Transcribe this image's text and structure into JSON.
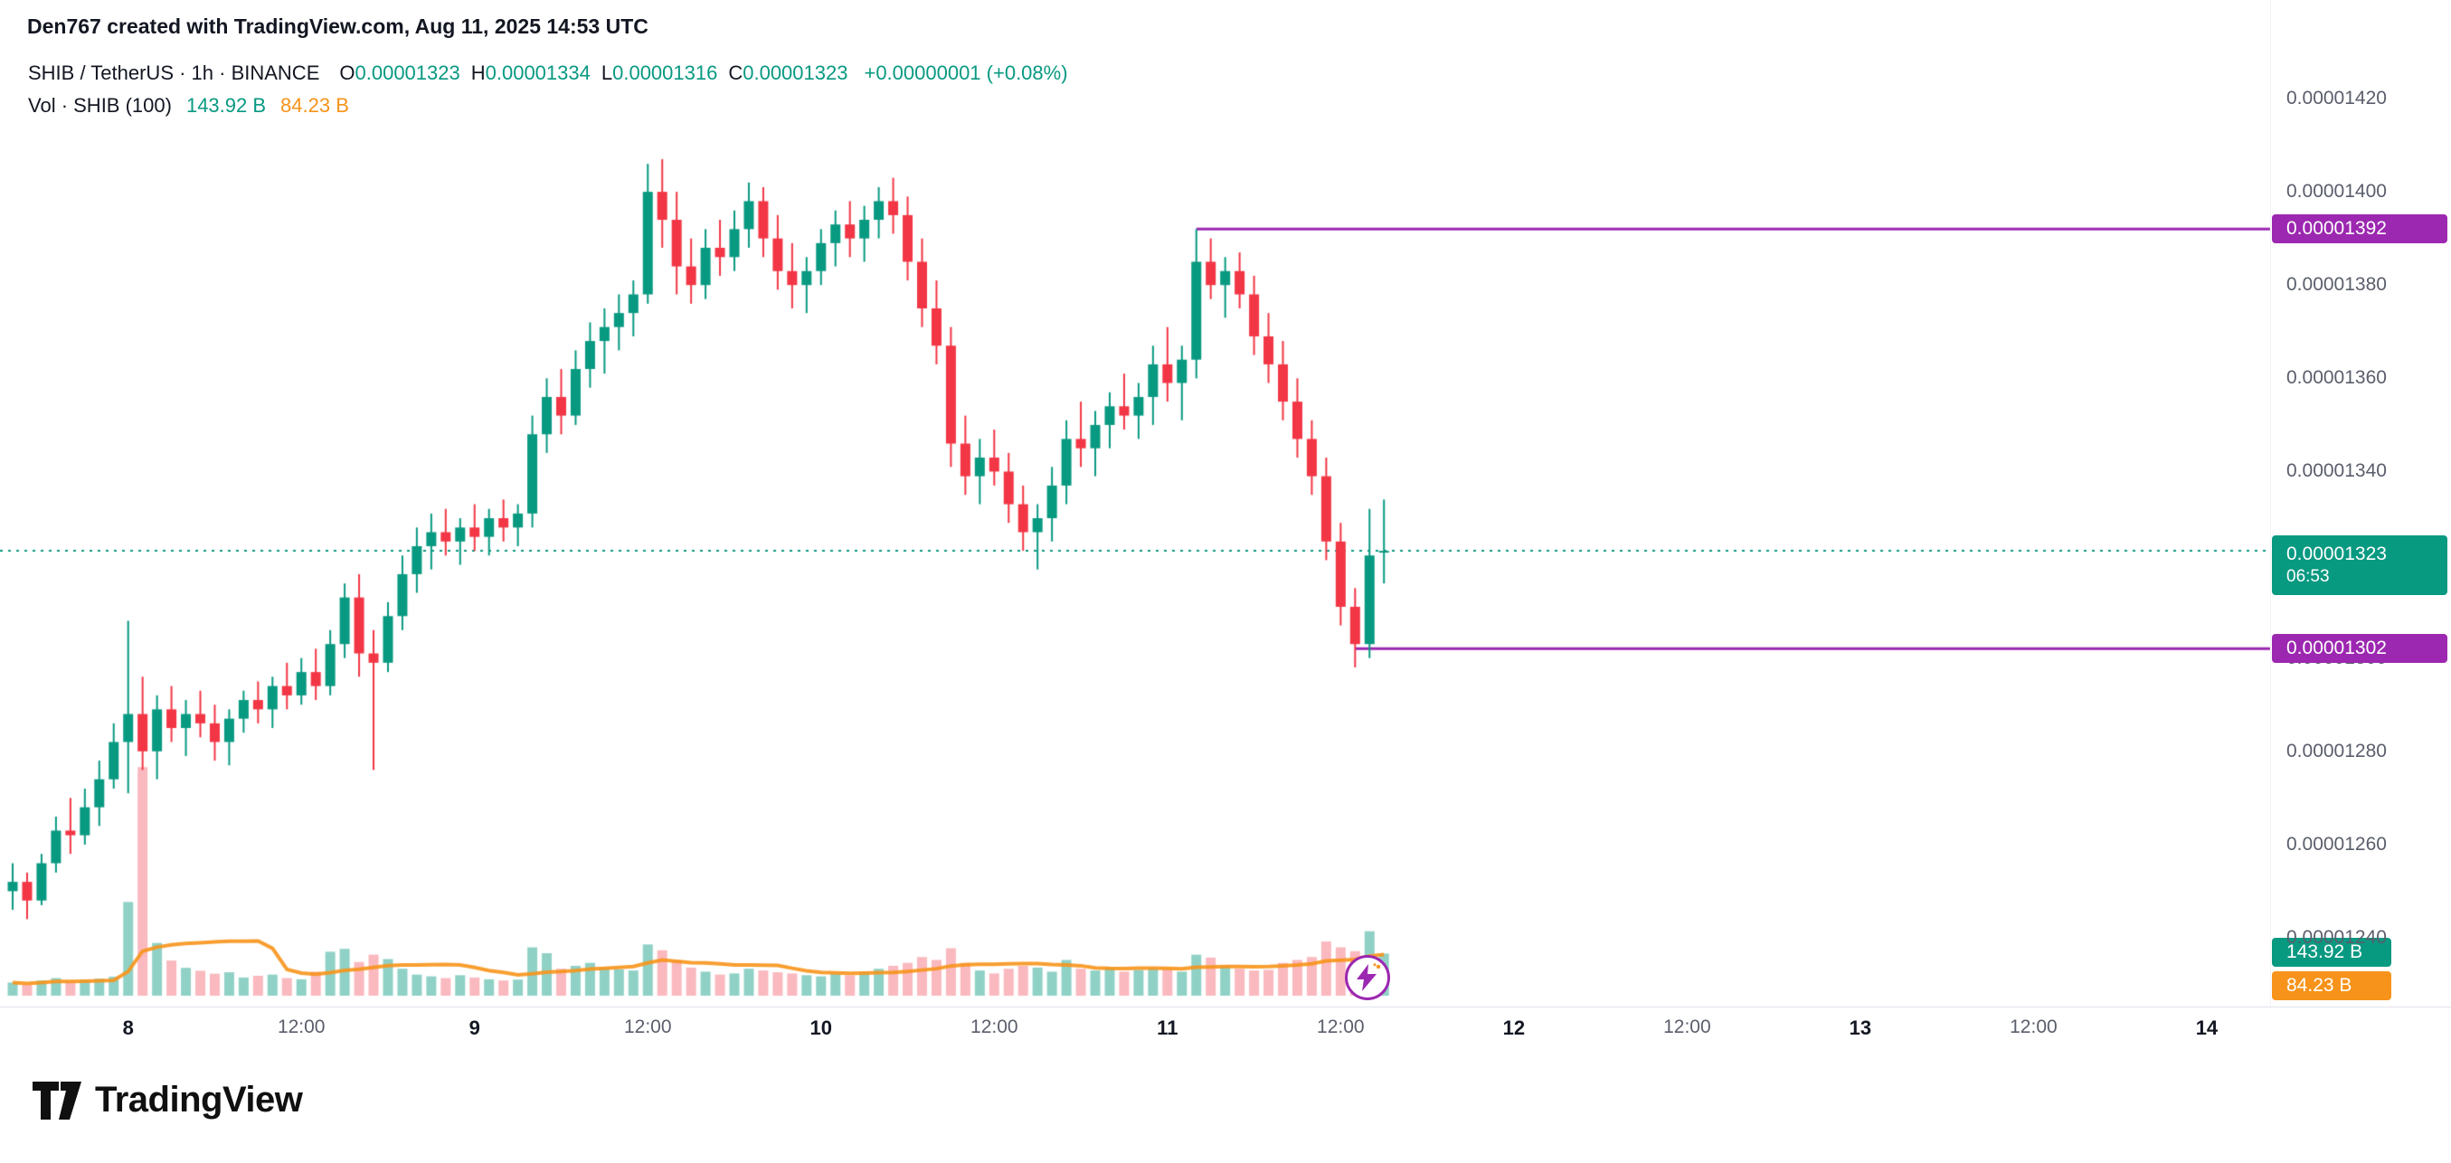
{
  "header": {
    "credit": "Den767 created with TradingView.com, Aug 11, 2025 14:53 UTC"
  },
  "legend": {
    "symbol_title": "SHIB / TetherUS · 1h · BINANCE",
    "o_label": "O",
    "o": "0.00001323",
    "h_label": "H",
    "h": "0.00001334",
    "l_label": "L",
    "l": "0.00001316",
    "c_label": "C",
    "c": "0.00001323",
    "change": "+0.00000001 (+0.08%)",
    "vol_label": "Vol · SHIB (100)",
    "vol_value": "143.92 B",
    "vol_ma": "84.23 B"
  },
  "colors": {
    "up": "#089981",
    "down": "#F23645",
    "vol_up": "rgba(8,153,129,0.45)",
    "vol_down": "rgba(242,54,69,0.35)",
    "ma": "#F7931A",
    "level": "#9C27B0",
    "text_dark": "#131722",
    "text_gray": "#5A5E6B"
  },
  "branding": {
    "logo_text": "TradingView"
  },
  "chart_data": {
    "type": "candlestick",
    "title": "SHIB / TetherUS · 1h · BINANCE",
    "interval": "1h",
    "price_unit": 1e-08,
    "ylim": [
      1240,
      1420
    ],
    "hours_origin": "Aug 8 00:00 UTC",
    "start_hour_index": -8,
    "candles": [
      [
        1250,
        1256,
        1246,
        1252
      ],
      [
        1252,
        1254,
        1244,
        1248
      ],
      [
        1248,
        1258,
        1247,
        1256
      ],
      [
        1256,
        1266,
        1254,
        1263
      ],
      [
        1263,
        1270,
        1258,
        1262
      ],
      [
        1262,
        1272,
        1260,
        1268
      ],
      [
        1268,
        1278,
        1264,
        1274
      ],
      [
        1274,
        1286,
        1272,
        1282
      ],
      [
        1282,
        1308,
        1271,
        1288
      ],
      [
        1288,
        1296,
        1276,
        1280
      ],
      [
        1280,
        1292,
        1274,
        1289
      ],
      [
        1289,
        1294,
        1282,
        1285
      ],
      [
        1285,
        1291,
        1279,
        1288
      ],
      [
        1288,
        1293,
        1283,
        1286
      ],
      [
        1286,
        1290,
        1278,
        1282
      ],
      [
        1282,
        1289,
        1277,
        1287
      ],
      [
        1287,
        1293,
        1284,
        1291
      ],
      [
        1291,
        1295,
        1286,
        1289
      ],
      [
        1289,
        1296,
        1285,
        1294
      ],
      [
        1294,
        1299,
        1289,
        1292
      ],
      [
        1292,
        1300,
        1290,
        1297
      ],
      [
        1297,
        1302,
        1291,
        1294
      ],
      [
        1294,
        1306,
        1292,
        1303
      ],
      [
        1303,
        1316,
        1300,
        1313
      ],
      [
        1313,
        1318,
        1296,
        1301
      ],
      [
        1301,
        1306,
        1276,
        1299
      ],
      [
        1299,
        1312,
        1297,
        1309
      ],
      [
        1309,
        1322,
        1306,
        1318
      ],
      [
        1318,
        1328,
        1314,
        1324
      ],
      [
        1324,
        1331,
        1319,
        1327
      ],
      [
        1327,
        1332,
        1322,
        1325
      ],
      [
        1325,
        1330,
        1320,
        1328
      ],
      [
        1328,
        1333,
        1323,
        1326
      ],
      [
        1326,
        1332,
        1322,
        1330
      ],
      [
        1330,
        1334,
        1325,
        1328
      ],
      [
        1328,
        1333,
        1324,
        1331
      ],
      [
        1331,
        1352,
        1328,
        1348
      ],
      [
        1348,
        1360,
        1344,
        1356
      ],
      [
        1356,
        1362,
        1348,
        1352
      ],
      [
        1352,
        1366,
        1350,
        1362
      ],
      [
        1362,
        1372,
        1358,
        1368
      ],
      [
        1368,
        1375,
        1361,
        1371
      ],
      [
        1371,
        1378,
        1366,
        1374
      ],
      [
        1374,
        1381,
        1369,
        1378
      ],
      [
        1378,
        1406,
        1376,
        1400
      ],
      [
        1400,
        1407,
        1388,
        1394
      ],
      [
        1394,
        1400,
        1378,
        1384
      ],
      [
        1384,
        1390,
        1376,
        1380
      ],
      [
        1380,
        1392,
        1377,
        1388
      ],
      [
        1388,
        1394,
        1382,
        1386
      ],
      [
        1386,
        1396,
        1383,
        1392
      ],
      [
        1392,
        1402,
        1388,
        1398
      ],
      [
        1398,
        1401,
        1386,
        1390
      ],
      [
        1390,
        1395,
        1379,
        1383
      ],
      [
        1383,
        1389,
        1375,
        1380
      ],
      [
        1380,
        1386,
        1374,
        1383
      ],
      [
        1383,
        1392,
        1380,
        1389
      ],
      [
        1389,
        1396,
        1384,
        1393
      ],
      [
        1393,
        1398,
        1386,
        1390
      ],
      [
        1390,
        1397,
        1385,
        1394
      ],
      [
        1394,
        1401,
        1390,
        1398
      ],
      [
        1398,
        1403,
        1391,
        1395
      ],
      [
        1395,
        1399,
        1381,
        1385
      ],
      [
        1385,
        1390,
        1371,
        1375
      ],
      [
        1375,
        1381,
        1363,
        1367
      ],
      [
        1367,
        1371,
        1341,
        1346
      ],
      [
        1346,
        1352,
        1335,
        1339
      ],
      [
        1339,
        1347,
        1333,
        1343
      ],
      [
        1343,
        1349,
        1337,
        1340
      ],
      [
        1340,
        1344,
        1329,
        1333
      ],
      [
        1333,
        1337,
        1323,
        1327
      ],
      [
        1327,
        1333,
        1319,
        1330
      ],
      [
        1330,
        1341,
        1325,
        1337
      ],
      [
        1337,
        1351,
        1333,
        1347
      ],
      [
        1347,
        1355,
        1341,
        1345
      ],
      [
        1345,
        1353,
        1339,
        1350
      ],
      [
        1350,
        1357,
        1345,
        1354
      ],
      [
        1354,
        1361,
        1349,
        1352
      ],
      [
        1352,
        1359,
        1347,
        1356
      ],
      [
        1356,
        1367,
        1350,
        1363
      ],
      [
        1363,
        1371,
        1355,
        1359
      ],
      [
        1359,
        1367,
        1351,
        1364
      ],
      [
        1364,
        1392,
        1360,
        1385
      ],
      [
        1385,
        1390,
        1377,
        1380
      ],
      [
        1380,
        1386,
        1373,
        1383
      ],
      [
        1383,
        1387,
        1375,
        1378
      ],
      [
        1378,
        1382,
        1365,
        1369
      ],
      [
        1369,
        1374,
        1359,
        1363
      ],
      [
        1363,
        1368,
        1351,
        1355
      ],
      [
        1355,
        1360,
        1343,
        1347
      ],
      [
        1347,
        1351,
        1335,
        1339
      ],
      [
        1339,
        1343,
        1321,
        1325
      ],
      [
        1325,
        1329,
        1307,
        1311
      ],
      [
        1311,
        1315,
        1298,
        1303
      ],
      [
        1303,
        1332,
        1300,
        1322
      ],
      [
        1323,
        1334,
        1316,
        1323
      ]
    ],
    "volumes": [
      45,
      38,
      52,
      60,
      48,
      55,
      58,
      65,
      320,
      780,
      180,
      120,
      95,
      85,
      75,
      80,
      62,
      68,
      72,
      60,
      56,
      82,
      150,
      160,
      115,
      140,
      125,
      92,
      72,
      66,
      60,
      70,
      62,
      56,
      52,
      55,
      165,
      145,
      92,
      102,
      112,
      96,
      90,
      86,
      175,
      155,
      122,
      96,
      82,
      72,
      76,
      92,
      86,
      80,
      76,
      70,
      66,
      76,
      70,
      80,
      92,
      102,
      112,
      132,
      122,
      162,
      112,
      86,
      76,
      92,
      102,
      96,
      82,
      122,
      92,
      86,
      96,
      82,
      88,
      94,
      92,
      82,
      140,
      130,
      102,
      92,
      86,
      88,
      112,
      122,
      132,
      185,
      165,
      152,
      220,
      143.92
    ],
    "volume_unit": "B",
    "y_ticks": [
      {
        "text": "0.00001420",
        "value": 1420
      },
      {
        "text": "0.00001400",
        "value": 1400
      },
      {
        "text": "0.00001380",
        "value": 1380
      },
      {
        "text": "0.00001360",
        "value": 1360
      },
      {
        "text": "0.00001340",
        "value": 1340
      },
      {
        "text": "0.00001300",
        "value": 1300
      },
      {
        "text": "0.00001280",
        "value": 1280
      },
      {
        "text": "0.00001260",
        "value": 1260
      },
      {
        "text": "0.00001240",
        "value": 1240
      }
    ],
    "x_ticks": [
      {
        "text": "8",
        "hour": 0,
        "style": "day"
      },
      {
        "text": "12:00",
        "hour": 12,
        "style": "time"
      },
      {
        "text": "9",
        "hour": 24,
        "style": "day"
      },
      {
        "text": "12:00",
        "hour": 36,
        "style": "time"
      },
      {
        "text": "10",
        "hour": 48,
        "style": "day"
      },
      {
        "text": "12:00",
        "hour": 60,
        "style": "time"
      },
      {
        "text": "11",
        "hour": 72,
        "style": "day"
      },
      {
        "text": "12:00",
        "hour": 84,
        "style": "time"
      },
      {
        "text": "12",
        "hour": 96,
        "style": "day"
      },
      {
        "text": "12:00",
        "hour": 108,
        "style": "time"
      },
      {
        "text": "13",
        "hour": 120,
        "style": "day"
      },
      {
        "text": "12:00",
        "hour": 132,
        "style": "time"
      },
      {
        "text": "14",
        "hour": 144,
        "style": "day"
      }
    ],
    "levels": [
      {
        "label": "0.00001392",
        "value": 1392,
        "from_hour": 74
      },
      {
        "label": "0.00001302",
        "value": 1302,
        "from_hour": 85
      }
    ],
    "current": {
      "label": "0.00001323",
      "value": 1323,
      "countdown": "06:53"
    },
    "volume_badges": {
      "current": {
        "label": "143.92 B",
        "value": 143.92
      },
      "ma": {
        "label": "84.23 B",
        "value": 84.23
      }
    }
  }
}
